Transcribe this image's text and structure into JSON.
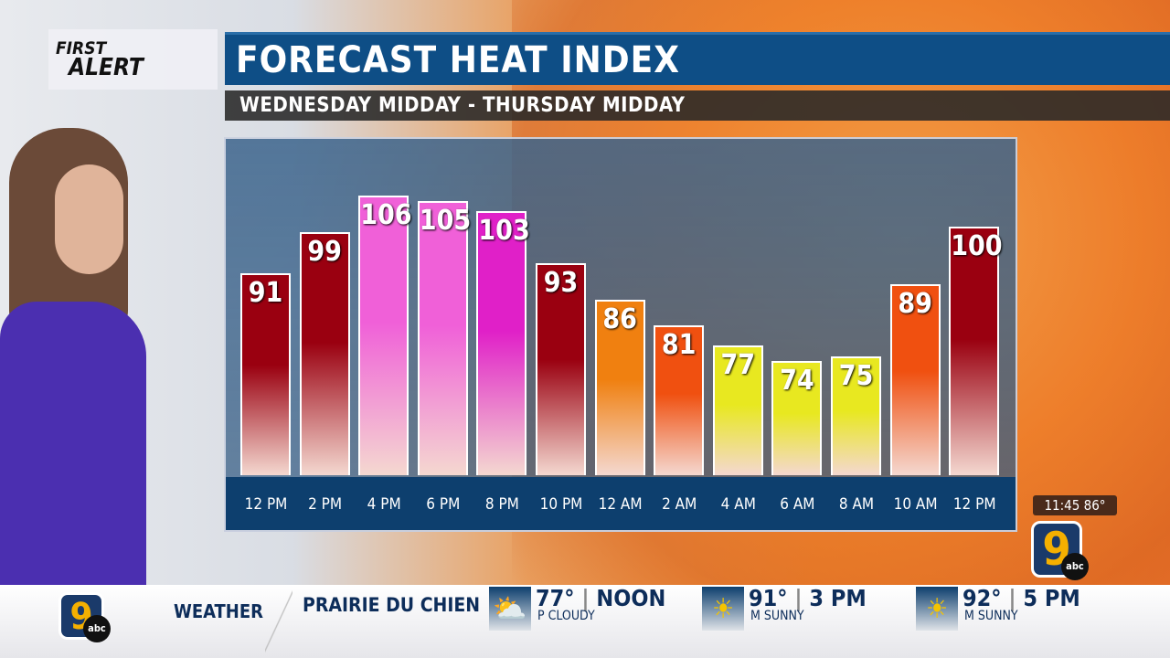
{
  "branding": {
    "logo_line1": "FIRST",
    "logo_line2": "ALERT",
    "station": "9",
    "network": "abc"
  },
  "header": {
    "title": "FORECAST HEAT INDEX",
    "subtitle": "WEDNESDAY MIDDAY - THURSDAY MIDDAY"
  },
  "bug": {
    "time": "11:45",
    "temp": "86°"
  },
  "chart_data": {
    "type": "bar",
    "title": "FORECAST HEAT INDEX",
    "subtitle": "WEDNESDAY MIDDAY - THURSDAY MIDDAY",
    "categories": [
      "12 PM",
      "2 PM",
      "4 PM",
      "6 PM",
      "8 PM",
      "10 PM",
      "12 AM",
      "2 AM",
      "4 AM",
      "6 AM",
      "8 AM",
      "10 AM",
      "12 PM"
    ],
    "values": [
      91,
      99,
      106,
      105,
      103,
      93,
      86,
      81,
      77,
      74,
      75,
      89,
      100
    ],
    "colors": [
      "#9a0010",
      "#9a0010",
      "#f060d8",
      "#f060d8",
      "#e020c8",
      "#9a0010",
      "#f08010",
      "#f05010",
      "#e8e820",
      "#e8e820",
      "#e8e820",
      "#f05010",
      "#9a0010"
    ],
    "ylim": [
      52,
      117
    ],
    "grid": false,
    "legend": "none",
    "data_labels": true
  },
  "ticker": {
    "section": "WEATHER",
    "location": "PRAIRIE DU CHIEN",
    "items": [
      {
        "temp": "77°",
        "time": "NOON",
        "cond": "P CLOUDY",
        "icon": "partly-cloudy-icon"
      },
      {
        "temp": "91°",
        "time": "3 PM",
        "cond": "M SUNNY",
        "icon": "sun-icon"
      },
      {
        "temp": "92°",
        "time": "5 PM",
        "cond": "M SUNNY",
        "icon": "sun-icon"
      }
    ]
  }
}
